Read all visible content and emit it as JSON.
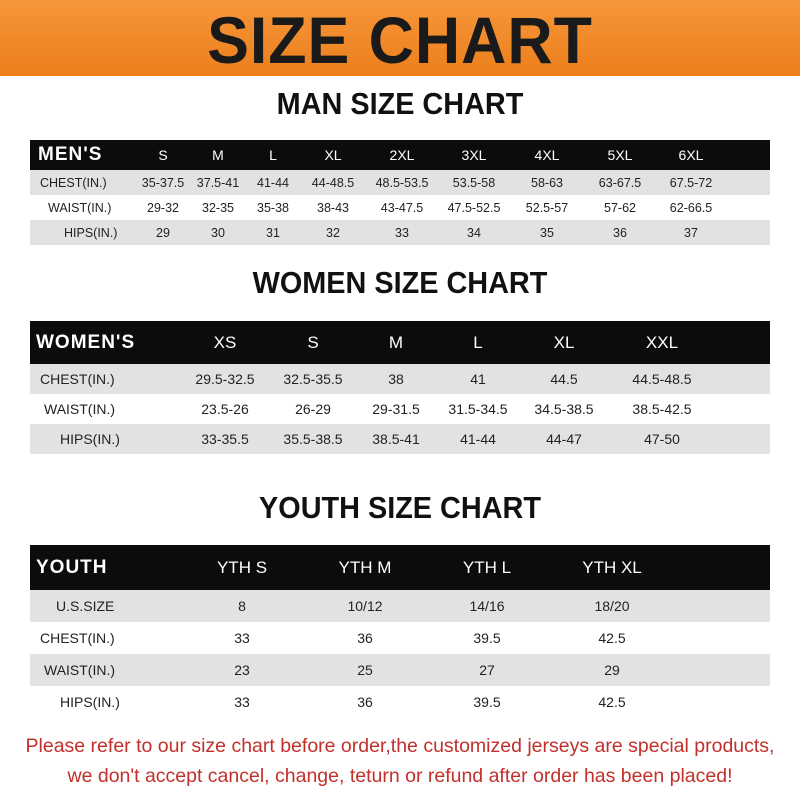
{
  "banner": {
    "title": "SIZE CHART",
    "color": "#f08a24"
  },
  "tables": [
    {
      "title": "MAN SIZE CHART",
      "header": [
        "MEN'S",
        "S",
        "M",
        "L",
        "XL",
        "2XL",
        "3XL",
        "4XL",
        "5XL",
        "6XL"
      ],
      "rows": [
        [
          "CHEST(IN.)",
          "35-37.5",
          "37.5-41",
          "41-44",
          "44-48.5",
          "48.5-53.5",
          "53.5-58",
          "58-63",
          "63-67.5",
          "67.5-72"
        ],
        [
          "WAIST(IN.)",
          "29-32",
          "32-35",
          "35-38",
          "38-43",
          "43-47.5",
          "47.5-52.5",
          "52.5-57",
          "57-62",
          "62-66.5"
        ],
        [
          "HIPS(IN.)",
          "29",
          "30",
          "31",
          "32",
          "33",
          "34",
          "35",
          "36",
          "37"
        ]
      ]
    },
    {
      "title": "WOMEN SIZE CHART",
      "header": [
        "WOMEN'S",
        "XS",
        "S",
        "M",
        "L",
        "XL",
        "XXL"
      ],
      "rows": [
        [
          "CHEST(IN.)",
          "29.5-32.5",
          "32.5-35.5",
          "38",
          "41",
          "44.5",
          "44.5-48.5"
        ],
        [
          "WAIST(IN.)",
          "23.5-26",
          "26-29",
          "29-31.5",
          "31.5-34.5",
          "34.5-38.5",
          "38.5-42.5"
        ],
        [
          "HIPS(IN.)",
          "33-35.5",
          "35.5-38.5",
          "38.5-41",
          "41-44",
          "44-47",
          "47-50"
        ]
      ]
    },
    {
      "title": "YOUTH SIZE CHART",
      "header": [
        "YOUTH",
        "YTH S",
        "YTH M",
        "YTH L",
        "YTH XL"
      ],
      "rows": [
        [
          "U.S.SIZE",
          "8",
          "10/12",
          "14/16",
          "18/20"
        ],
        [
          "CHEST(IN.)",
          "33",
          "36",
          "39.5",
          "42.5"
        ],
        [
          "WAIST(IN.)",
          "23",
          "25",
          "27",
          "29"
        ],
        [
          "HIPS(IN.)",
          "33",
          "36",
          "39.5",
          "42.5"
        ]
      ]
    }
  ],
  "footer": {
    "line1": "Please refer to our size chart before order,the customized jerseys are special products,",
    "line2": "we don't accept cancel, change, teturn or refund after order has been placed!",
    "color": "#c3302b"
  }
}
